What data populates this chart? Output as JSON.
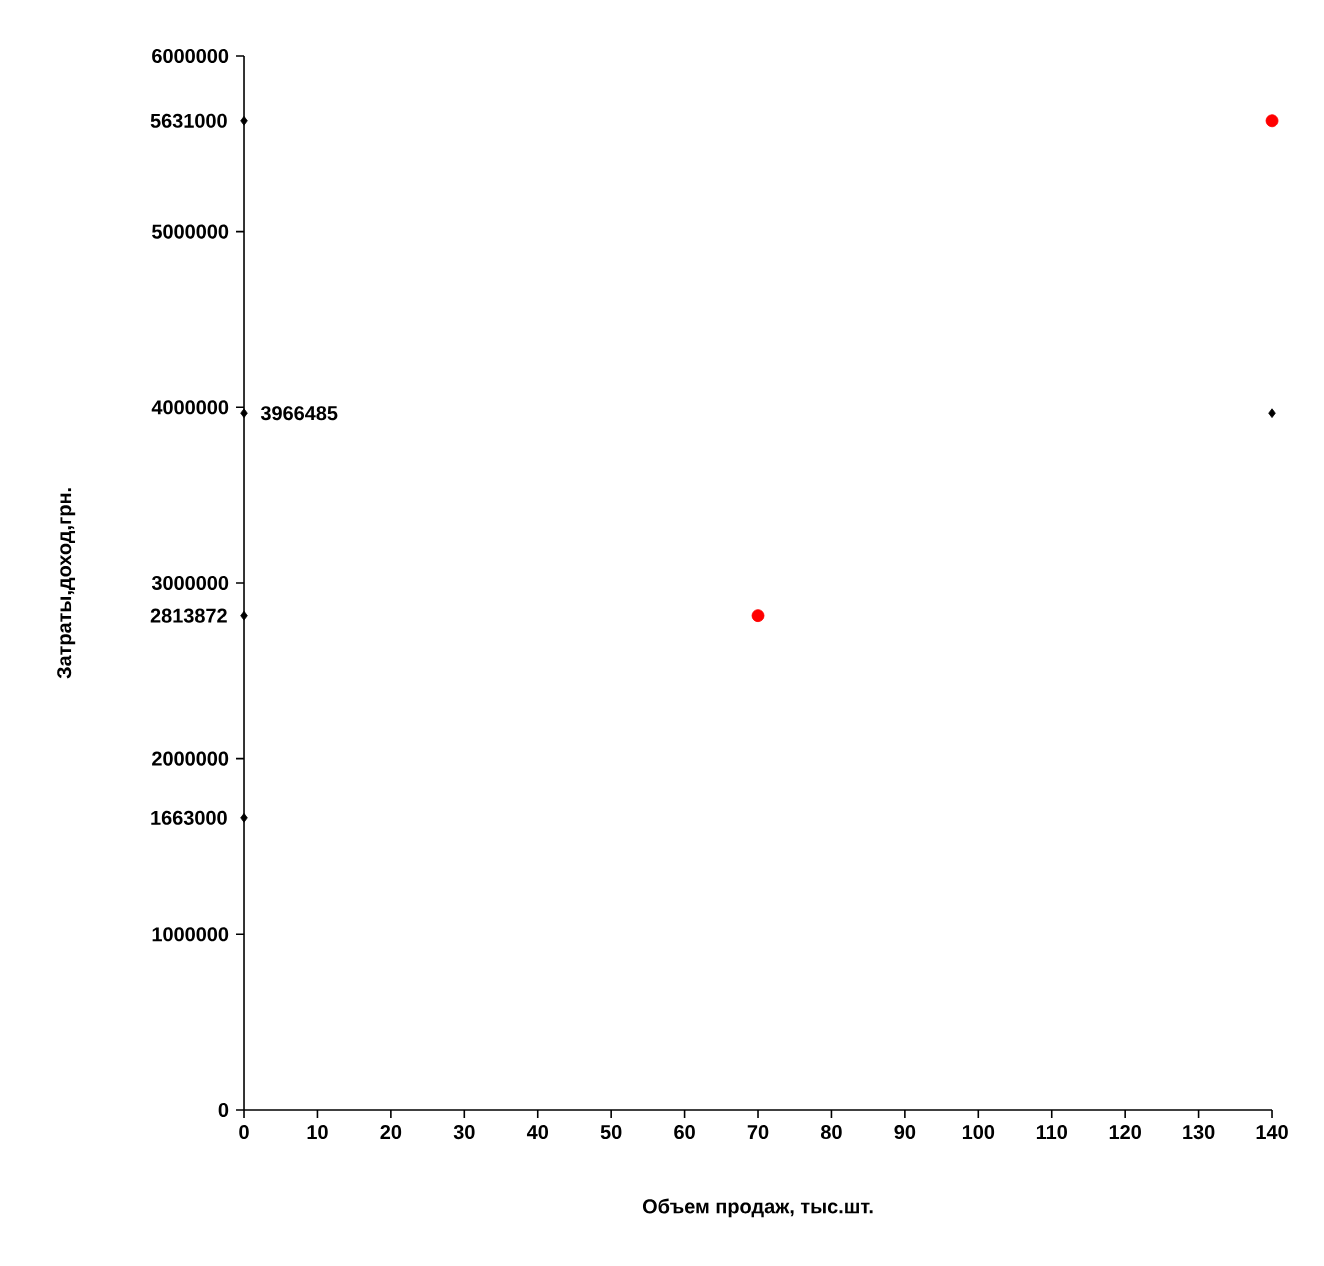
{
  "chart_data": {
    "type": "scatter",
    "xlabel": "Объем продаж, тыс.шт.",
    "ylabel": "Затраты,доход,грн.",
    "xlim": [
      0,
      140
    ],
    "xticks": [
      0,
      10,
      20,
      30,
      40,
      50,
      60,
      70,
      80,
      90,
      100,
      110,
      120,
      130,
      140
    ],
    "ylim": [
      0,
      6000000
    ],
    "yticks": [
      0,
      1000000,
      2000000,
      3000000,
      4000000,
      5000000,
      6000000
    ],
    "grid": false,
    "series": [
      {
        "color": "#000000",
        "marker": "diamond",
        "x": [
          0,
          0,
          0,
          0,
          140
        ],
        "values": [
          5631000,
          3966485,
          2813872,
          1663000,
          3966485
        ],
        "value_labels": [
          "5631000",
          "3966485",
          "2813872",
          "1663000",
          null
        ]
      },
      {
        "color": "#ff0000",
        "marker": "circle",
        "x": [
          70,
          140
        ],
        "values": [
          2813872,
          5631000
        ]
      }
    ]
  }
}
